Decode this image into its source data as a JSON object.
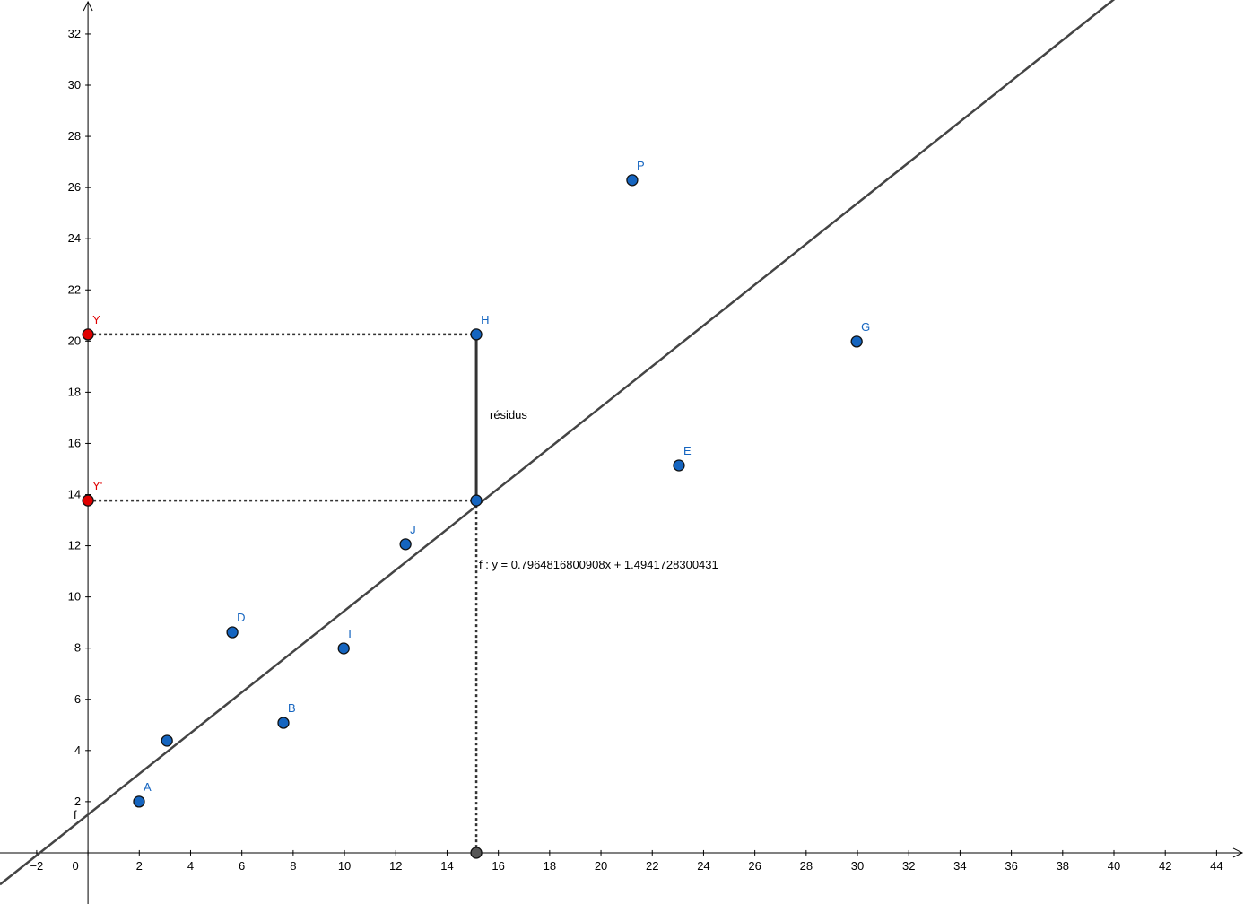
{
  "chart_data": {
    "type": "scatter",
    "xlim": [
      -3.43,
      45.07
    ],
    "ylim": [
      -2.0,
      33.33
    ],
    "xticks": [
      {
        "value": -2,
        "label": "−2"
      },
      0,
      2,
      4,
      6,
      8,
      10,
      12,
      14,
      16,
      18,
      20,
      22,
      24,
      26,
      28,
      30,
      32,
      34,
      36,
      38,
      40,
      42,
      44
    ],
    "yticks": [
      2,
      4,
      6,
      8,
      10,
      12,
      14,
      16,
      18,
      20,
      22,
      24,
      26,
      28,
      30,
      32
    ],
    "grid": false,
    "points": [
      {
        "label": "A",
        "x": 1.99,
        "y": 2.0,
        "color": "#1565c0"
      },
      {
        "label": null,
        "x": 3.08,
        "y": 4.38,
        "color": "#1565c0"
      },
      {
        "label": "B",
        "x": 7.62,
        "y": 5.08,
        "color": "#1565c0"
      },
      {
        "label": "D",
        "x": 5.63,
        "y": 8.62,
        "color": "#1565c0"
      },
      {
        "label": "I",
        "x": 9.97,
        "y": 7.99,
        "color": "#1565c0"
      },
      {
        "label": "J",
        "x": 12.38,
        "y": 12.06,
        "color": "#1565c0"
      },
      {
        "label": "H",
        "x": 15.14,
        "y": 20.26,
        "color": "#1565c0"
      },
      {
        "label": "P",
        "x": 21.22,
        "y": 26.29,
        "color": "#1565c0"
      },
      {
        "label": "E",
        "x": 23.04,
        "y": 15.14,
        "color": "#1565c0"
      },
      {
        "label": "G",
        "x": 29.97,
        "y": 19.98,
        "color": "#1565c0"
      },
      {
        "label": "Y",
        "x": 0,
        "y": 20.26,
        "color": "#e00000"
      },
      {
        "label": "Y'",
        "x": 0,
        "y": 13.77,
        "color": "#e00000"
      },
      {
        "label": null,
        "x": 15.14,
        "y": 13.77,
        "color": "#1565c0"
      },
      {
        "label": null,
        "x": 15.14,
        "y": 0,
        "color": "#555555"
      }
    ],
    "line": {
      "name": "f",
      "slope": 0.7964816800908,
      "intercept": 1.4941728300431,
      "color": "#444444",
      "equation": "f :  y = 0.7964816800908x + 1.4941728300431"
    },
    "annotation": "résidus"
  }
}
